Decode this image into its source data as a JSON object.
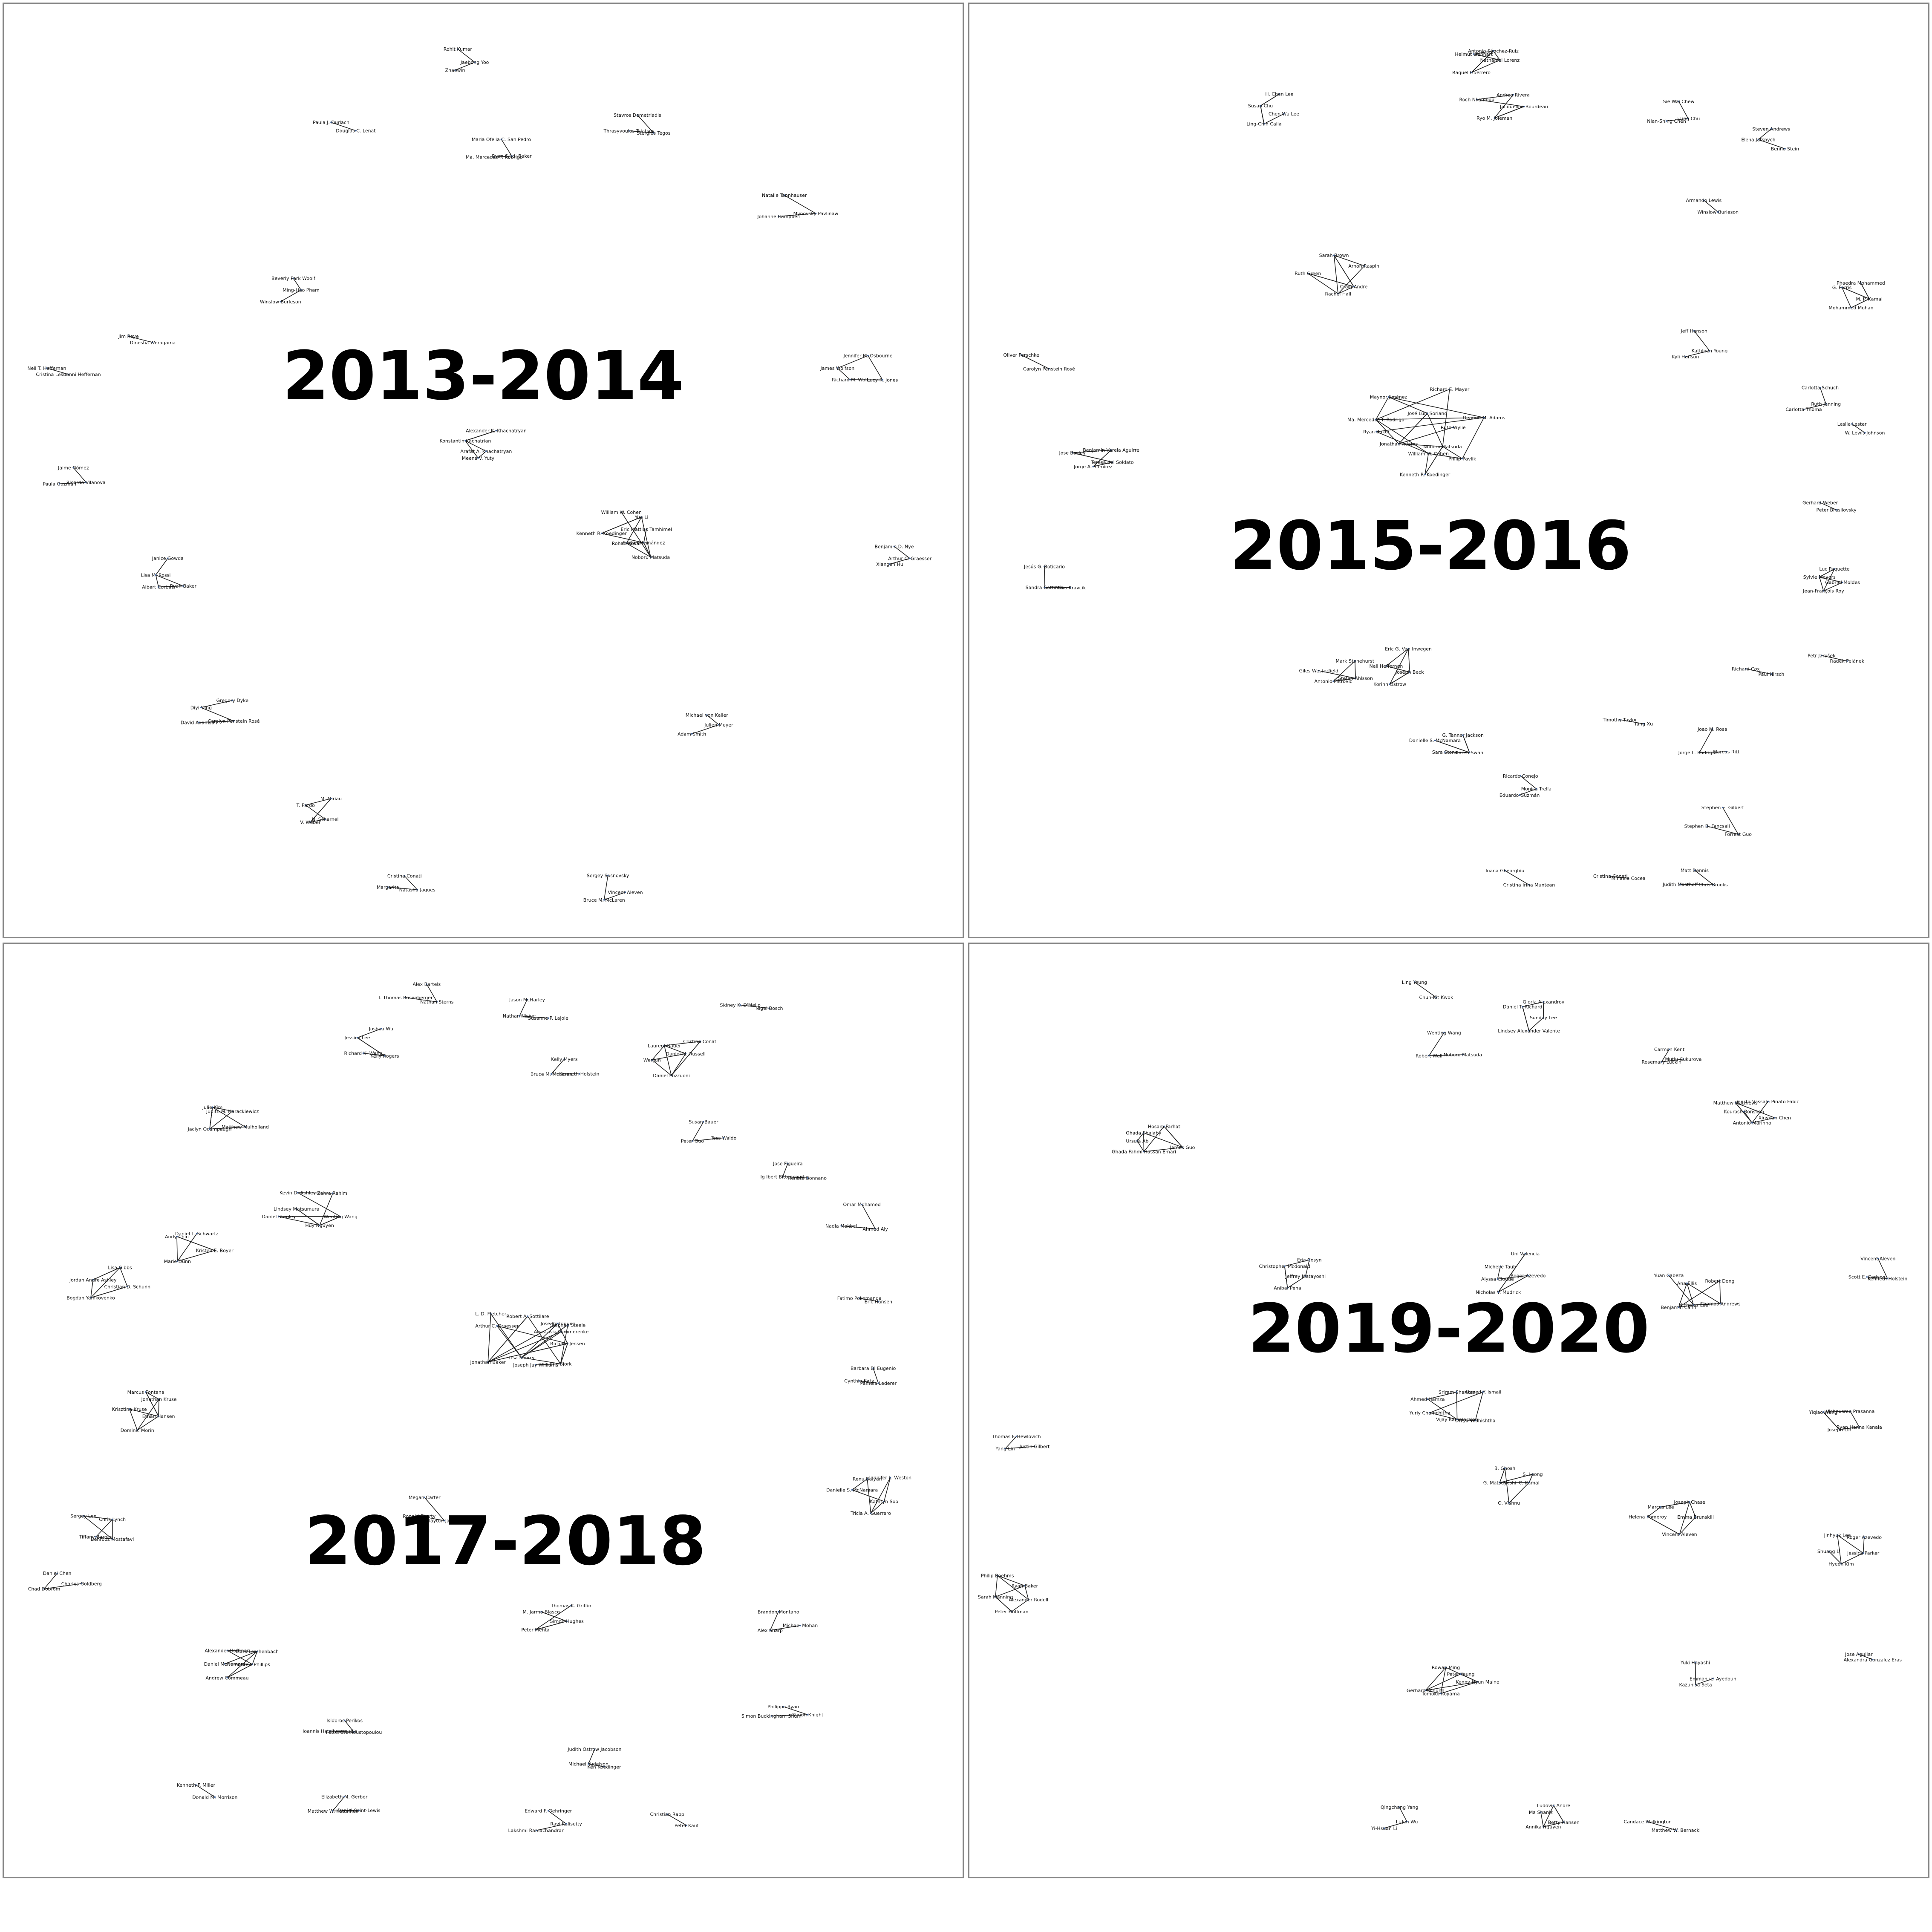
{
  "panels": [
    {
      "period": "2013-2014",
      "clusters": [
        {
          "labels": [
            "Jaebong Yoo",
            "Zhaowin",
            "Rohit Kumar"
          ]
        },
        {
          "labels": [
            "Douglas C. Lenat",
            "Paula J. Durlach"
          ]
        },
        {
          "labels": [
            "Ryan S.J.d. Baker",
            "Ma. Mercedes T. Rodrigo",
            "Maria Ofelia C. San Pedro"
          ]
        },
        {
          "labels": [
            "Stergios Tegos",
            "Thrasyvoulos Tsiatsos",
            "Stavros Demetriadis"
          ]
        },
        {
          "labels": [
            "Mynovsky Pavlinaw",
            "Johanne Campbell",
            "Natalie Tannhauser"
          ]
        },
        {
          "labels": [
            "Ming-Hao Pham",
            "Winslow Burleson",
            "Beverly Park Woolf"
          ]
        },
        {
          "labels": [
            "Dinesha Weragama",
            "Jim Reye"
          ]
        },
        {
          "labels": [
            "Cristina Lesbonni Heffernan",
            "Neil T. Heffernan"
          ]
        },
        {
          "labels": [
            "Lucy R. Jones",
            "Richard M. Wolf",
            "James Wolfson",
            "Jennifer M. Osbourne"
          ]
        },
        {
          "labels": [
            "Arafat A. Khachatryan",
            "Meena V. Yuty",
            "Konstantin Kachatrian",
            "Alexander K. Khachatryan"
          ]
        },
        {
          "labels": [
            "Ricardo Vilanova",
            "Paula Guzmán",
            "Jaime Gómez"
          ]
        },
        {
          "labels": [
            "Evelyn Hernández",
            "Noboru Matsuda",
            "Rohan Kokar",
            "Kenneth R. Koedinger",
            "William W. Cohen",
            "Yue Li",
            "Eric Mattias Tamhimel"
          ]
        },
        {
          "labels": [
            "Arthur C. Graesser",
            "Xiangen Hu",
            "Benjamin D. Nye"
          ]
        },
        {
          "labels": [
            "Ryan Baker",
            "Albert Corbett",
            "Lisa M. Rossi",
            "Janice Gowda"
          ]
        },
        {
          "labels": [
            "Carolyn Penstein Rosé",
            "David Adamson",
            "Diyi Yang",
            "Gregory Dyke"
          ]
        },
        {
          "labels": [
            "Julien Meyer",
            "Adam Smith",
            "Michael von Keller"
          ]
        },
        {
          "labels": [
            "N. Scharnel",
            "V. Weber",
            "T. Pardo",
            "M. Miriau"
          ]
        },
        {
          "labels": [
            "Natasha Jaques",
            "Margarita",
            "Cristina Conati"
          ]
        },
        {
          "labels": [
            "Vincent Aleven",
            "Bruce M. McLaren",
            "Sergey Sosnovsky"
          ]
        }
      ]
    },
    {
      "period": "2015-2016",
      "clusters": [
        {
          "labels": [
            "Nathaniel Lorenz",
            "Raquel Guerrero",
            "Helmut Lienhart",
            "Antonio Sánchez-Ruiz"
          ]
        },
        {
          "labels": [
            "Chen Wu Lee",
            "Ling-Chih Calla",
            "Susan Chu",
            "H. Chen Lee"
          ]
        },
        {
          "labels": [
            "Jacqueline Bourdeau",
            "Ryo M. Joleman",
            "Roch Nkambou",
            "Andrea Rivera"
          ]
        },
        {
          "labels": [
            "I-Ling Chu",
            "Nian-Shing Chen",
            "Sie Wai Chew"
          ]
        },
        {
          "labels": [
            "Benno Stein",
            "Elena Jatsnych",
            "Steven Andrews"
          ]
        },
        {
          "labels": [
            "Winslow Burleson",
            "Armando Lewis"
          ]
        },
        {
          "labels": [
            "Craig Andre",
            "Rachel Hall",
            "Ruth Green",
            "Sarah Brown",
            "Arnon Raspini"
          ]
        },
        {
          "labels": [
            "M. P. Kamal",
            "Mohammed Mohan",
            "G. Ferris",
            "Phaedra Mohammed"
          ]
        },
        {
          "labels": [
            "Carolyn Penstein Rosé",
            "Oliver Ferschke"
          ]
        },
        {
          "labels": [
            "Kathleen Young",
            "Kyli Hanson",
            "Jeff Hanson"
          ]
        },
        {
          "labels": [
            "Ruth Jenning",
            "Carlotta Thoma",
            "Carlotta Schuch"
          ]
        },
        {
          "labels": [
            "W. Lewis Johnson",
            "Leslie Lester"
          ]
        },
        {
          "labels": [
            "Philip Pavlik",
            "Noboru Matsuda",
            "William W. Cohen",
            "Kenneth R. Koedinger",
            "Jonathan Adams",
            "Ryan Baker",
            "Ma. Mercedes T. Rodrigo",
            "Maynor Jiménez",
            "José Luis Soriano",
            "Richard E. Mayer",
            "Deanne M. Adams",
            "Ruth Wylie"
          ]
        },
        {
          "labels": [
            "Teresa del Soldato",
            "Jorge A. Ramírez",
            "Jose Bosley",
            "Benjamin Varela Aguirre"
          ]
        },
        {
          "labels": [
            "Peter Brusilovsky",
            "Gerhard Weber"
          ]
        },
        {
          "labels": [
            "Milos Kravcik",
            "Sandra Gottardo",
            "Jesús G. Boticario"
          ]
        },
        {
          "labels": [
            "Gabriel Moldes",
            "Jean-François Roy",
            "Sylvie Meyers",
            "Luc Paquette"
          ]
        },
        {
          "labels": [
            "Stefan Ahlsson",
            "Antonio Mitrovic",
            "Giles Westerfield",
            "Mark Stonehurst"
          ]
        },
        {
          "labels": [
            "Joseph Beck",
            "Korinn Ostrow",
            "Neil Heffernan",
            "Eric G. Van Inwegen"
          ]
        },
        {
          "labels": [
            "Radek Pelánek",
            "Petr Jarušek"
          ]
        },
        {
          "labels": [
            "Paul Hirsch",
            "Richard Cox"
          ]
        },
        {
          "labels": [
            "Karen Swan",
            "Sara Stone",
            "Danielle S. McNamara",
            "G. Tanner Jackson"
          ]
        },
        {
          "labels": [
            "Yang Xu",
            "Timothy Taylor"
          ]
        },
        {
          "labels": [
            "Marcus Ritt",
            "Jorge L. Rodrigues",
            "Joao M. Rosa"
          ]
        },
        {
          "labels": [
            "Monica Trella",
            "Eduardo Guzmán",
            "Ricardo Conejo"
          ]
        },
        {
          "labels": [
            "Forrest Guo",
            "Stephen B. Fancsali",
            "Stephen E. Gilbert"
          ]
        },
        {
          "labels": [
            "Cristina Irina Muntean",
            "Ioana Gheorghiu"
          ]
        },
        {
          "labels": [
            "Mihaela Cocea",
            "Cristina Conati"
          ]
        },
        {
          "labels": [
            "Chris Brooks",
            "Judith Masthoff",
            "Matt Dennis"
          ]
        }
      ]
    },
    {
      "period": "2017-2018",
      "clusters": [
        {
          "labels": [
            "Nathan Sterns",
            "T. Thomas Rosenberger",
            "Alex Bartels"
          ]
        },
        {
          "labels": [
            "Susanne P. Lajoie",
            "Nathan Nisbet",
            "Jason McHarley"
          ]
        },
        {
          "labels": [
            "Nigel Bosch",
            "Sidney K. D'Mello"
          ]
        },
        {
          "labels": [
            "Kelly Rogers",
            "Richard K. Wang",
            "Jessica Lee",
            "Joshua Wu"
          ]
        },
        {
          "labels": [
            "Daniel M. Russell",
            "Daniel Pozzuoni",
            "Wenjun",
            "Laurent Bauer",
            "Cristina Conati"
          ]
        },
        {
          "labels": [
            "Kenneth Holstein",
            "Bruce M. McLaren",
            "Kelly Myers"
          ]
        },
        {
          "labels": [
            "Matthew Mulholland",
            "Jaclyn Ocumpaugh",
            "Julie Kim",
            "Judith M. Harackiewicz"
          ]
        },
        {
          "labels": [
            "Tess Waldo",
            "Peter Guo",
            "Susan Bauer"
          ]
        },
        {
          "labels": [
            "Renata Bonnano",
            "Ig Ibert Bittencourt",
            "Jose Figueira"
          ]
        },
        {
          "labels": [
            "Wenting Wang",
            "Huy Nguyen",
            "Daniel Stanley",
            "Lindsey Matsumura",
            "Kevin D. Ashley",
            "Zahra Rahimi"
          ]
        },
        {
          "labels": [
            "Ahmed Aly",
            "Nadia Mokbel",
            "Omar Mohamed"
          ]
        },
        {
          "labels": [
            "Kristen E. Boyer",
            "Marie Dunn",
            "Andy Chin",
            "Daniel L. Schwartz"
          ]
        },
        {
          "labels": [
            "Christian D. Schunn",
            "Bogdan Yamkovenko",
            "Jordan Andre Ashley",
            "Lisa Gibbs"
          ]
        },
        {
          "labels": [
            "Eric Hansen",
            "Fatimo Pokomanda"
          ]
        },
        {
          "labels": [
            "Richard Jensen",
            "Eric Bjork",
            "Joseph Jay Williams",
            "Lisa Sherry",
            "Jonathan Baker",
            "Arthur C. Graesser",
            "L. D. Fletcher",
            "Robert A. Sottilare",
            "Jose Rodriguez",
            "Stephen Steele",
            "Anastasia Pommerenke"
          ]
        },
        {
          "labels": [
            "Pamela Lederer",
            "Cynthia Katz",
            "Barbara Di Eugenio"
          ]
        },
        {
          "labels": [
            "Ethan Hansen",
            "Dominic Morin",
            "Krisztina Kruse",
            "Marcus Fontana",
            "Jonathan Kruse"
          ]
        },
        {
          "labels": [
            "Kathryn Soo",
            "Tricia A. Guerrero",
            "Danielle S. McNamara",
            "Renu Balyan",
            "Jennifer L. Weston"
          ]
        },
        {
          "labels": [
            "Clayton Jackson",
            "Ronald Shorty",
            "Megan Carter"
          ]
        },
        {
          "labels": [
            "Behrooz Mostafavi",
            "Tiffany Barnes",
            "Sergey Lee",
            "Chris Lynch"
          ]
        },
        {
          "labels": [
            "Charles Goldberg",
            "Chad Dobrom",
            "Daniel Chen"
          ]
        },
        {
          "labels": [
            "Simon Hughes",
            "Peter Mehta",
            "M. Jarmo Blasco",
            "Thomas K. Griffin"
          ]
        },
        {
          "labels": [
            "Michael Mohan",
            "Alex Sharp",
            "Brandon Montano"
          ]
        },
        {
          "labels": [
            "Andrew Phillips",
            "Andrew Commeau",
            "Daniel McNamara",
            "Alexander Hoffman",
            "Mark Lerchenbach"
          ]
        },
        {
          "labels": [
            "Simon Knight",
            "Simon Buckingham Shum",
            "Philippa Ryan"
          ]
        },
        {
          "labels": [
            "Fotini Gramoustopoulou",
            "Ioannis Hatzilygeroudis",
            "Isidoros Perikos"
          ]
        },
        {
          "labels": [
            "Ken Koedinger",
            "Michael Yudelson",
            "Judith Ostrow Jacobson"
          ]
        },
        {
          "labels": [
            "Donald M. Morrison",
            "Kenneth F. Miller"
          ]
        },
        {
          "labels": [
            "Daniel Saint-Lewis",
            "Matthew W. Kettelhut",
            "Elizabeth M. Gerber"
          ]
        },
        {
          "labels": [
            "Ravi Kalisetty",
            "Lakshmi Ramachandran",
            "Edward F. Gehringer"
          ]
        },
        {
          "labels": [
            "Peter Kauf",
            "Christian Rapp"
          ]
        }
      ]
    },
    {
      "period": "2019-2020",
      "clusters": [
        {
          "labels": [
            "Chun-Kit Kwok",
            "Ling Yeung"
          ]
        },
        {
          "labels": [
            "Sunday Lee",
            "Lindsey Alexander Valente",
            "Daniel T. Richard",
            "Gloria Alexandrov"
          ]
        },
        {
          "labels": [
            "Noboru Matsuda",
            "Robert Wall",
            "Wenting Wang"
          ]
        },
        {
          "labels": [
            "Mutlu Cukurova",
            "Rosemary Luckin",
            "Carmen Kent"
          ]
        },
        {
          "labels": [
            "Xinyuan Chen",
            "Antonio Marinho",
            "Kourosh Ronshan",
            "Matthew Matthews",
            "Gesta Vassalo Pinato Fabic"
          ]
        },
        {
          "labels": [
            "James Guo",
            "Ghada Fahmi Hassan Emari",
            "Ursula Ab",
            "Ghada Shalaby",
            "Hosam Farhat"
          ]
        },
        {
          "labels": [
            "Jeffrey Matayoshi",
            "Anibal Pena",
            "Christopher Mcdonald",
            "Eric Cosyn"
          ]
        },
        {
          "labels": [
            "Roger Azevedo",
            "Nicholas V. Mudrick",
            "Alyssa Cloude",
            "Michelle Taub",
            "Uni Valencia"
          ]
        },
        {
          "labels": [
            "Thomas Andrews",
            "Nicholas Lee",
            "Benjamin Cahn",
            "Yuan Cabeza",
            "Ana Ellis",
            "Robert Dong"
          ]
        },
        {
          "labels": [
            "Kenneth Holstein",
            "Scott E. Carlson",
            "Vincent Aleven"
          ]
        },
        {
          "labels": [
            "Divya Vashishtha",
            "Vijay Kamalarajan",
            "Yuriy Chamchitha",
            "Ahmed Hamza",
            "Sriram Shankar",
            "Ahmed Y. Ismail"
          ]
        },
        {
          "labels": [
            "Ryan Hanna Kanala",
            "Joseph Lin",
            "Yiqiao Wang",
            "Vishnusree Prasanna"
          ]
        },
        {
          "labels": [
            "Justin Gilbert",
            "Yang Lin",
            "Thomas F. Hewlovich"
          ]
        },
        {
          "labels": [
            "C. Kamal",
            "O. Vishnu",
            "G. Matsuyoshi",
            "B. Ghosh",
            "S. Leong"
          ]
        },
        {
          "labels": [
            "Emma Brunskill",
            "Vincent Aleven",
            "Helena Pomeroy",
            "Marcus Lee",
            "Joseph Chase"
          ]
        },
        {
          "labels": [
            "Jessica Parker",
            "Hyeon Kim",
            "Shuang Li",
            "Jinhyuk Lee",
            "Roger Azevedo"
          ]
        },
        {
          "labels": [
            "Alexander Rodell",
            "Peter Hoffman",
            "Sarah Manning",
            "Philip Boehms",
            "Ryan Baker"
          ]
        },
        {
          "labels": [
            "Alexandra Gonzalez Eras",
            "Jose Aguilar"
          ]
        },
        {
          "labels": [
            "Kenny Hyun Maino",
            "Tomoko Koyama",
            "Gerhard Schunn",
            "Rowan Ming",
            "Peter Yeung"
          ]
        },
        {
          "labels": [
            "Emmanuel Ayedoun",
            "Kazuhisa Seta",
            "Yuki Hayashi"
          ]
        },
        {
          "labels": [
            "Li-Jen Wu",
            "Yi-Hsuan Li",
            "Qingchang Yang"
          ]
        },
        {
          "labels": [
            "Betty Hansen",
            "Annika Nguyen",
            "Ma Shaniz",
            "Ludovic Andre"
          ]
        },
        {
          "labels": [
            "Matthew W. Bernacki",
            "Candace Walkington"
          ]
        }
      ]
    }
  ]
}
